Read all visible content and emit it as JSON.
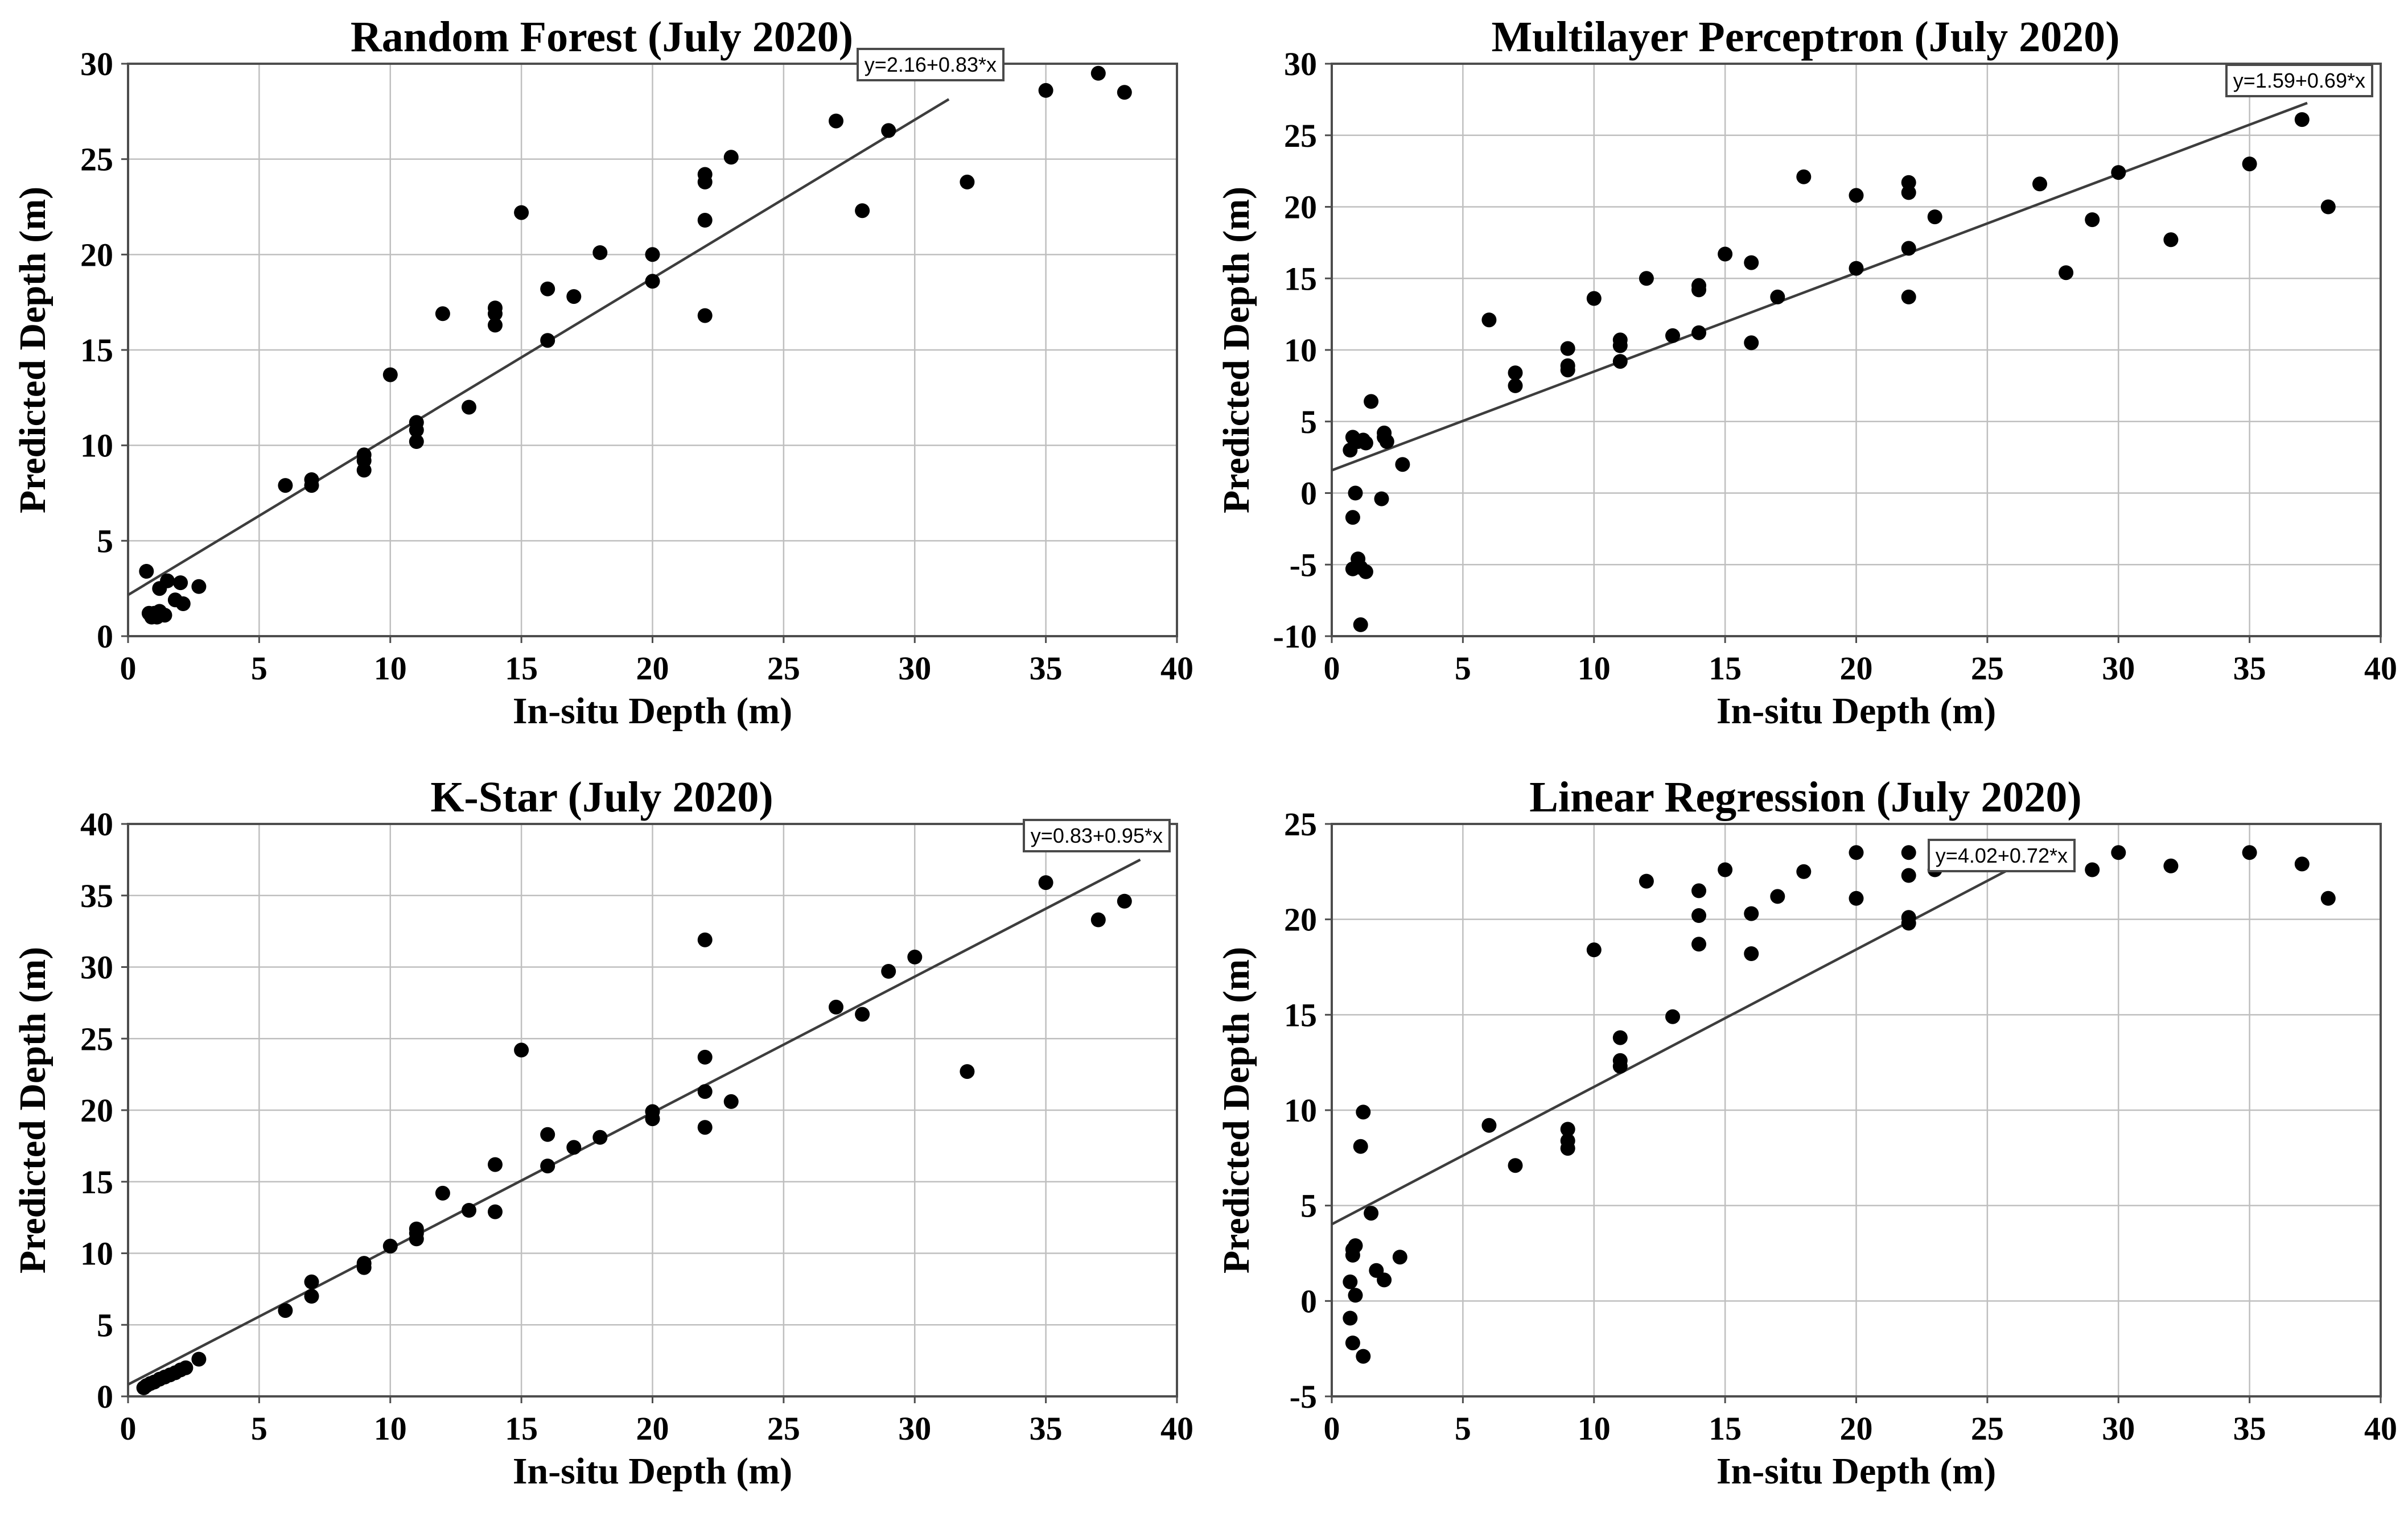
{
  "figure": {
    "xlabel": "In-situ Depth (m)",
    "ylabel": "Predicted Depth (m)"
  },
  "style": {
    "background": "#ffffff",
    "point_color": "#000000",
    "fit_line_color": "#3d3d3d",
    "grid_color": "#bfbfbf",
    "frame_color": "#4d4d4d",
    "eq_border_color": "#4a4a4a",
    "text_color": "#000000"
  },
  "chart_data": [
    {
      "type": "scatter",
      "title": "Random Forest (July 2020)",
      "xlabel": "In-situ Depth (m)",
      "ylabel": "Predicted Depth (m)",
      "equation": "y=2.16+0.83*x",
      "fit": {
        "intercept": 2.16,
        "slope": 0.83
      },
      "xlim": [
        0,
        40
      ],
      "ylim": [
        0,
        30
      ],
      "xticks": [
        0,
        5,
        10,
        15,
        20,
        25,
        30,
        35,
        40
      ],
      "yticks": [
        0,
        5,
        10,
        15,
        20,
        25,
        30
      ],
      "grid": true,
      "points": [
        [
          0.7,
          3.4
        ],
        [
          1.2,
          2.5
        ],
        [
          1.5,
          2.9
        ],
        [
          2.0,
          2.8
        ],
        [
          2.7,
          2.6
        ],
        [
          1.8,
          1.9
        ],
        [
          2.1,
          1.7
        ],
        [
          0.8,
          1.2
        ],
        [
          0.9,
          1.0
        ],
        [
          1.0,
          1.2
        ],
        [
          1.1,
          1.0
        ],
        [
          1.2,
          1.3
        ],
        [
          1.4,
          1.1
        ],
        [
          6,
          7.9
        ],
        [
          7,
          8.2
        ],
        [
          7,
          7.9
        ],
        [
          9,
          9.5
        ],
        [
          9,
          9.2
        ],
        [
          9,
          8.7
        ],
        [
          10,
          13.7
        ],
        [
          11,
          11.2
        ],
        [
          11,
          10.8
        ],
        [
          11,
          10.2
        ],
        [
          12,
          16.9
        ],
        [
          13,
          12.0
        ],
        [
          14,
          17.2
        ],
        [
          14,
          16.9
        ],
        [
          14,
          16.3
        ],
        [
          15,
          22.2
        ],
        [
          16,
          18.2
        ],
        [
          16,
          15.5
        ],
        [
          17,
          17.8
        ],
        [
          18,
          20.1
        ],
        [
          20,
          20.0
        ],
        [
          20,
          18.6
        ],
        [
          22,
          24.2
        ],
        [
          22,
          23.8
        ],
        [
          22,
          21.8
        ],
        [
          22,
          16.8
        ],
        [
          23,
          25.1
        ],
        [
          27,
          27.0
        ],
        [
          28,
          22.3
        ],
        [
          29,
          26.5
        ],
        [
          32,
          23.8
        ],
        [
          35,
          28.6
        ],
        [
          37,
          29.5
        ],
        [
          38,
          28.5
        ]
      ]
    },
    {
      "type": "scatter",
      "title": "Multilayer Perceptron (July 2020)",
      "xlabel": "In-situ Depth (m)",
      "ylabel": "Predicted Depth (m)",
      "equation": "y=1.59+0.69*x",
      "fit": {
        "intercept": 1.59,
        "slope": 0.69
      },
      "xlim": [
        0,
        40
      ],
      "ylim": [
        -10,
        30
      ],
      "xticks": [
        0,
        5,
        10,
        15,
        20,
        25,
        30,
        35,
        40
      ],
      "yticks": [
        -10,
        -5,
        0,
        5,
        10,
        15,
        20,
        25,
        30
      ],
      "grid": true,
      "points": [
        [
          0.7,
          3.0
        ],
        [
          0.8,
          3.9
        ],
        [
          1.0,
          3.6
        ],
        [
          1.2,
          3.7
        ],
        [
          1.3,
          3.5
        ],
        [
          2.0,
          4.2
        ],
        [
          2.0,
          3.9
        ],
        [
          2.1,
          3.6
        ],
        [
          2.7,
          2.0
        ],
        [
          1.5,
          6.4
        ],
        [
          0.9,
          0.0
        ],
        [
          1.9,
          -0.4
        ],
        [
          0.8,
          -1.7
        ],
        [
          1.0,
          -4.6
        ],
        [
          1.1,
          -5.2
        ],
        [
          0.8,
          -5.3
        ],
        [
          1.3,
          -5.5
        ],
        [
          1.1,
          -9.2
        ],
        [
          6,
          12.1
        ],
        [
          7,
          8.4
        ],
        [
          7,
          7.5
        ],
        [
          9,
          10.1
        ],
        [
          9,
          8.9
        ],
        [
          9,
          8.6
        ],
        [
          10,
          13.6
        ],
        [
          11,
          10.7
        ],
        [
          11,
          10.3
        ],
        [
          11,
          9.2
        ],
        [
          12,
          15.0
        ],
        [
          13,
          11.0
        ],
        [
          14,
          14.5
        ],
        [
          14,
          14.2
        ],
        [
          14,
          11.2
        ],
        [
          15,
          16.7
        ],
        [
          16,
          16.1
        ],
        [
          16,
          10.5
        ],
        [
          17,
          13.7
        ],
        [
          18,
          22.1
        ],
        [
          20,
          20.8
        ],
        [
          20,
          15.7
        ],
        [
          22,
          21.7
        ],
        [
          22,
          21.0
        ],
        [
          22,
          17.1
        ],
        [
          22,
          13.7
        ],
        [
          23,
          19.3
        ],
        [
          27,
          21.6
        ],
        [
          28,
          15.4
        ],
        [
          29,
          19.1
        ],
        [
          30,
          22.4
        ],
        [
          32,
          17.7
        ],
        [
          35,
          23.0
        ],
        [
          37,
          26.1
        ],
        [
          38,
          20.0
        ]
      ]
    },
    {
      "type": "scatter",
      "title": "K-Star (July 2020)",
      "xlabel": "In-situ Depth (m)",
      "ylabel": "Predicted Depth (m)",
      "equation": "y=0.83+0.95*x",
      "fit": {
        "intercept": 0.83,
        "slope": 0.95
      },
      "xlim": [
        0,
        40
      ],
      "ylim": [
        0,
        40
      ],
      "xticks": [
        0,
        5,
        10,
        15,
        20,
        25,
        30,
        35,
        40
      ],
      "yticks": [
        0,
        5,
        10,
        15,
        20,
        25,
        30,
        35,
        40
      ],
      "grid": true,
      "points": [
        [
          0.6,
          0.6
        ],
        [
          0.7,
          0.75
        ],
        [
          0.85,
          0.9
        ],
        [
          1.0,
          1.0
        ],
        [
          1.2,
          1.2
        ],
        [
          1.4,
          1.35
        ],
        [
          1.6,
          1.5
        ],
        [
          1.8,
          1.65
        ],
        [
          2.0,
          1.85
        ],
        [
          2.2,
          2.0
        ],
        [
          2.7,
          2.6
        ],
        [
          6,
          6.0
        ],
        [
          7,
          8.0
        ],
        [
          7,
          7.0
        ],
        [
          9,
          9.3
        ],
        [
          9,
          9.0
        ],
        [
          10,
          10.5
        ],
        [
          11,
          11.7
        ],
        [
          11,
          11.4
        ],
        [
          11,
          11.0
        ],
        [
          12,
          14.2
        ],
        [
          13,
          13.0
        ],
        [
          14,
          16.2
        ],
        [
          14,
          12.9
        ],
        [
          15,
          24.2
        ],
        [
          16,
          18.3
        ],
        [
          16,
          16.1
        ],
        [
          17,
          17.4
        ],
        [
          18,
          18.1
        ],
        [
          20,
          19.9
        ],
        [
          20,
          19.4
        ],
        [
          22,
          31.9
        ],
        [
          22,
          23.7
        ],
        [
          22,
          21.3
        ],
        [
          22,
          18.8
        ],
        [
          23,
          20.6
        ],
        [
          27,
          27.2
        ],
        [
          28,
          26.7
        ],
        [
          29,
          29.7
        ],
        [
          30,
          30.7
        ],
        [
          32,
          22.7
        ],
        [
          35,
          35.9
        ],
        [
          37,
          33.3
        ],
        [
          38,
          34.6
        ]
      ]
    },
    {
      "type": "scatter",
      "title": "Linear Regression (July 2020)",
      "xlabel": "In-situ Depth (m)",
      "ylabel": "Predicted Depth (m)",
      "equation": "y=4.02+0.72*x",
      "fit": {
        "intercept": 4.02,
        "slope": 0.72
      },
      "xlim": [
        0,
        40
      ],
      "ylim": [
        -5,
        25
      ],
      "xticks": [
        0,
        5,
        10,
        15,
        20,
        25,
        30,
        35,
        40
      ],
      "yticks": [
        -5,
        0,
        5,
        10,
        15,
        20,
        25
      ],
      "grid": true,
      "points": [
        [
          1.2,
          9.9
        ],
        [
          1.1,
          8.1
        ],
        [
          1.5,
          4.6
        ],
        [
          0.8,
          2.7
        ],
        [
          0.9,
          2.9
        ],
        [
          0.8,
          2.4
        ],
        [
          2.6,
          2.3
        ],
        [
          1.7,
          1.6
        ],
        [
          2.0,
          1.1
        ],
        [
          0.7,
          1.0
        ],
        [
          0.9,
          0.3
        ],
        [
          0.7,
          -0.9
        ],
        [
          0.8,
          -2.2
        ],
        [
          1.2,
          -2.9
        ],
        [
          6,
          9.2
        ],
        [
          7,
          7.1
        ],
        [
          9,
          9.0
        ],
        [
          9,
          8.4
        ],
        [
          9,
          8.0
        ],
        [
          10,
          18.4
        ],
        [
          11,
          13.8
        ],
        [
          11,
          12.6
        ],
        [
          11,
          12.3
        ],
        [
          12,
          22.0
        ],
        [
          13,
          14.9
        ],
        [
          14,
          21.5
        ],
        [
          14,
          20.2
        ],
        [
          14,
          18.7
        ],
        [
          15,
          22.6
        ],
        [
          16,
          20.3
        ],
        [
          16,
          18.2
        ],
        [
          17,
          21.2
        ],
        [
          18,
          22.5
        ],
        [
          20,
          23.5
        ],
        [
          20,
          21.1
        ],
        [
          22,
          23.5
        ],
        [
          22,
          22.3
        ],
        [
          22,
          20.1
        ],
        [
          22,
          19.8
        ],
        [
          23,
          22.6
        ],
        [
          27,
          23.3
        ],
        [
          29,
          22.6
        ],
        [
          30,
          23.5
        ],
        [
          32,
          22.8
        ],
        [
          35,
          23.5
        ],
        [
          37,
          22.9
        ],
        [
          38,
          21.1
        ]
      ]
    }
  ]
}
